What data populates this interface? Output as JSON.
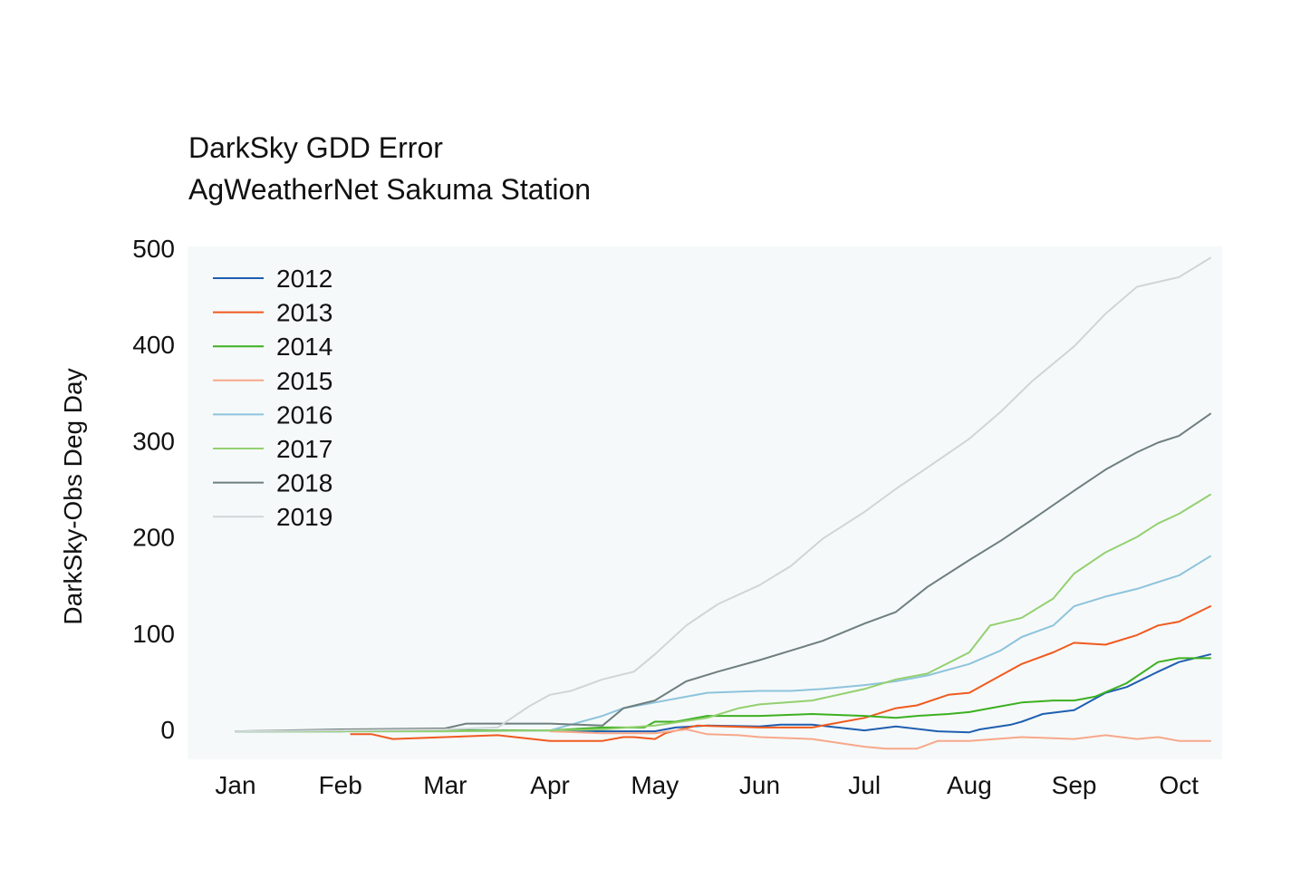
{
  "chart_data": {
    "type": "line",
    "title": "DarkSky GDD Error",
    "subtitle": "AgWeatherNet Sakuma Station",
    "xlabel": "",
    "ylabel": "DarkSky-Obs Deg Day",
    "x_ticks": [
      "Jan",
      "Feb",
      "Mar",
      "Apr",
      "May",
      "Jun",
      "Jul",
      "Aug",
      "Sep",
      "Oct"
    ],
    "y_ticks": [
      0,
      100,
      200,
      300,
      400,
      500
    ],
    "xlim": [
      -0.1,
      9.5
    ],
    "ylim": [
      -30,
      500
    ],
    "legend_position": "top-left",
    "series": [
      {
        "name": "2012",
        "color": "#1f5fb0",
        "x": [
          0,
          1,
          2,
          3,
          3.5,
          4,
          4.2,
          4.5,
          5,
          5.2,
          5.5,
          6,
          6.3,
          6.7,
          7,
          7.1,
          7.4,
          7.5,
          7.7,
          8,
          8.3,
          8.5,
          8.8,
          9,
          9.3
        ],
        "y": [
          -2,
          -2,
          -1,
          -1,
          -2,
          -2,
          2,
          4,
          3,
          5,
          5,
          -1,
          3,
          -2,
          -3,
          0,
          5,
          8,
          16,
          20,
          38,
          44,
          60,
          70,
          78
        ]
      },
      {
        "name": "2013",
        "color": "#f05a1e",
        "x": [
          1.1,
          1.3,
          1.5,
          2,
          2.5,
          3,
          3.5,
          3.7,
          3.8,
          4,
          4.1,
          4.4,
          5,
          5.5,
          5.8,
          6,
          6.3,
          6.5,
          6.8,
          7,
          7.2,
          7.5,
          7.8,
          8,
          8.3,
          8.6,
          8.8,
          9,
          9.3
        ],
        "y": [
          -5,
          -5,
          -10,
          -8,
          -6,
          -12,
          -12,
          -8,
          -8,
          -10,
          -4,
          4,
          2,
          2,
          8,
          12,
          22,
          25,
          36,
          38,
          50,
          68,
          80,
          90,
          88,
          98,
          108,
          112,
          128
        ]
      },
      {
        "name": "2014",
        "color": "#3cb021",
        "x": [
          0,
          1,
          2,
          3,
          3.5,
          3.9,
          4,
          4.2,
          4.5,
          5,
          5.5,
          6,
          6.3,
          6.5,
          6.8,
          7,
          7.3,
          7.5,
          7.8,
          8,
          8.2,
          8.5,
          8.8,
          9,
          9.3
        ],
        "y": [
          -2,
          -2,
          -1,
          -1,
          2,
          2,
          8,
          8,
          14,
          14,
          16,
          14,
          12,
          14,
          16,
          18,
          24,
          28,
          30,
          30,
          34,
          48,
          70,
          74,
          74
        ]
      },
      {
        "name": "2015",
        "color": "#f7a88a",
        "x": [
          3,
          3.5,
          4,
          4.3,
          4.5,
          4.8,
          5,
          5.5,
          6,
          6.2,
          6.5,
          6.7,
          7,
          7.5,
          8,
          8.3,
          8.6,
          8.8,
          9,
          9.3
        ],
        "y": [
          -2,
          -4,
          -4,
          0,
          -5,
          -6,
          -8,
          -10,
          -18,
          -20,
          -20,
          -12,
          -12,
          -8,
          -10,
          -6,
          -10,
          -8,
          -12,
          -12
        ]
      },
      {
        "name": "2016",
        "color": "#8ec4dc",
        "x": [
          0,
          1,
          2,
          3,
          3.3,
          3.5,
          3.7,
          4,
          4.3,
          4.5,
          5,
          5.3,
          5.6,
          6,
          6.3,
          6.6,
          7,
          7.3,
          7.5,
          7.8,
          8,
          8.3,
          8.6,
          9,
          9.3
        ],
        "y": [
          -2,
          -2,
          -2,
          -1,
          8,
          14,
          22,
          28,
          34,
          38,
          40,
          40,
          42,
          46,
          50,
          56,
          68,
          82,
          96,
          108,
          128,
          138,
          146,
          160,
          180
        ]
      },
      {
        "name": "2017",
        "color": "#94d070",
        "x": [
          0,
          1,
          2,
          3,
          3.5,
          4,
          4.5,
          4.8,
          5,
          5.5,
          6,
          6.3,
          6.6,
          7,
          7.2,
          7.5,
          7.8,
          8,
          8.3,
          8.6,
          8.8,
          9,
          9.3
        ],
        "y": [
          -2,
          -2,
          -2,
          -1,
          0,
          4,
          12,
          22,
          26,
          30,
          42,
          52,
          58,
          80,
          108,
          116,
          136,
          162,
          184,
          200,
          214,
          224,
          244
        ]
      },
      {
        "name": "2018",
        "color": "#6e7f7e",
        "x": [
          0,
          1,
          2,
          2.2,
          3,
          3.5,
          3.7,
          4,
          4.3,
          4.6,
          5,
          5.3,
          5.6,
          6,
          6.3,
          6.6,
          7,
          7.3,
          7.6,
          8,
          8.3,
          8.6,
          8.8,
          9,
          9.3
        ],
        "y": [
          -2,
          0,
          1,
          6,
          6,
          4,
          22,
          30,
          50,
          60,
          72,
          82,
          92,
          110,
          122,
          148,
          176,
          196,
          218,
          248,
          270,
          288,
          298,
          305,
          328
        ]
      },
      {
        "name": "2019",
        "color": "#cfd6d6",
        "x": [
          0,
          1,
          2,
          2.5,
          2.8,
          3,
          3.2,
          3.5,
          3.8,
          4,
          4.3,
          4.6,
          5,
          5.3,
          5.6,
          6,
          6.3,
          6.6,
          7,
          7.3,
          7.6,
          8,
          8.3,
          8.6,
          9,
          9.3
        ],
        "y": [
          -2,
          -1,
          0,
          2,
          24,
          36,
          40,
          52,
          60,
          78,
          108,
          130,
          150,
          170,
          198,
          226,
          250,
          272,
          302,
          330,
          362,
          398,
          432,
          460,
          470,
          490
        ]
      }
    ]
  }
}
